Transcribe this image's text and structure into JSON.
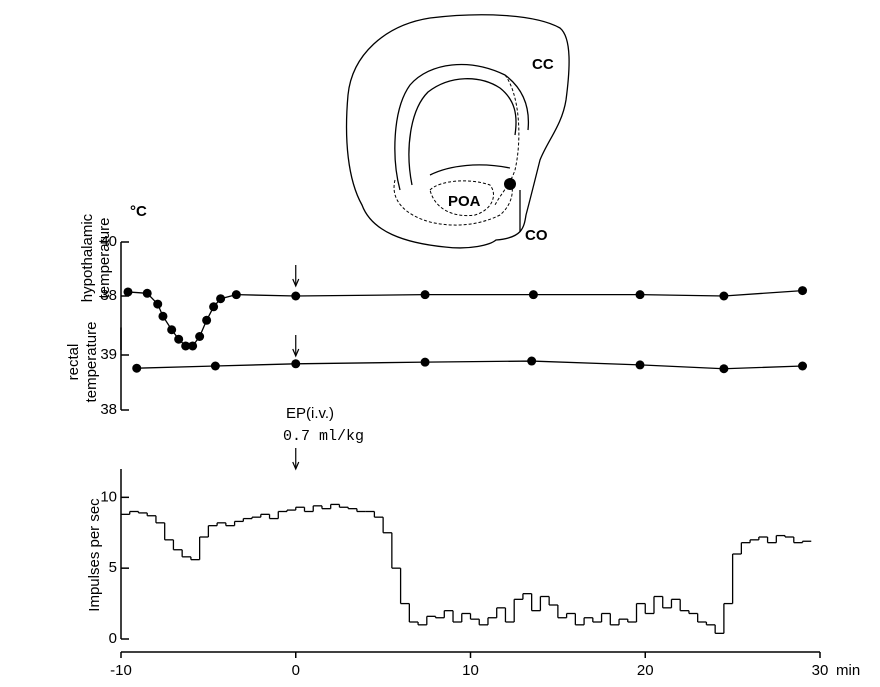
{
  "diagram": {
    "labels": [
      "CC",
      "POA",
      "CO"
    ]
  },
  "chart_data": [
    {
      "type": "line",
      "y_label_lines": [
        "hypothalamic",
        "temperature"
      ],
      "y_unit": "°C",
      "xlim": [
        -10,
        30
      ],
      "ylim": [
        36,
        40
      ],
      "yticks": [
        38,
        40
      ],
      "color": "#000000",
      "marker": "circle",
      "arrow_at": 0,
      "x": [
        -9.6,
        -8.5,
        -7.9,
        -7.6,
        -7.1,
        -6.7,
        -6.3,
        -5.9,
        -5.5,
        -5.1,
        -4.7,
        -4.3,
        -3.4,
        0,
        7.4,
        13.6,
        19.7,
        24.5,
        29
      ],
      "values": [
        38.15,
        38.1,
        37.7,
        37.25,
        36.75,
        36.4,
        36.15,
        36.15,
        36.5,
        37.1,
        37.6,
        37.9,
        38.05,
        38.0,
        38.05,
        38.05,
        38.05,
        38.0,
        38.2
      ]
    },
    {
      "type": "line",
      "y_label_lines": [
        "rectal",
        "temperature"
      ],
      "xlim": [
        -10,
        30
      ],
      "ylim": [
        38,
        39.5
      ],
      "yticks": [
        38,
        39
      ],
      "color": "#000000",
      "marker": "circle",
      "arrow_at": 0,
      "x": [
        -9.1,
        -4.6,
        0,
        7.4,
        13.5,
        19.7,
        24.5,
        29
      ],
      "values": [
        38.76,
        38.8,
        38.84,
        38.87,
        38.89,
        38.82,
        38.75,
        38.8
      ]
    },
    {
      "type": "step",
      "y_label": "Impulses per sec",
      "x_unit": "min",
      "annotation": [
        "EP(i.v.)",
        "0.7 ml/kg"
      ],
      "arrow_at": 0,
      "xlim": [
        -10,
        30
      ],
      "xticks": [
        -10,
        0,
        10,
        20,
        30
      ],
      "ylim": [
        0,
        12
      ],
      "yticks": [
        0,
        5,
        10
      ],
      "color": "#000000",
      "x": [
        -10,
        -9.5,
        -9,
        -8.5,
        -8,
        -7.5,
        -7,
        -6.5,
        -6,
        -5.5,
        -5,
        -4.5,
        -4,
        -3.5,
        -3,
        -2.5,
        -2,
        -1.5,
        -1,
        -0.5,
        0,
        0.5,
        1,
        1.5,
        2,
        2.5,
        3,
        3.5,
        4,
        4.5,
        5,
        5.5,
        6,
        6.5,
        7,
        7.5,
        8,
        8.5,
        9,
        9.5,
        10,
        10.5,
        11,
        11.5,
        12,
        12.5,
        13,
        13.5,
        14,
        14.5,
        15,
        15.5,
        16,
        16.5,
        17,
        17.5,
        18,
        18.5,
        19,
        19.5,
        20,
        20.5,
        21,
        21.5,
        22,
        22.5,
        23,
        23.5,
        24,
        24.5,
        25,
        25.5,
        26,
        26.5,
        27,
        27.5,
        28,
        28.5,
        29
      ],
      "values": [
        8.8,
        9.0,
        8.9,
        8.7,
        8.2,
        7.0,
        6.3,
        5.8,
        5.6,
        7.2,
        8.0,
        8.2,
        8.0,
        8.3,
        8.5,
        8.6,
        8.8,
        8.5,
        9.0,
        9.1,
        9.3,
        9.0,
        9.4,
        9.2,
        9.5,
        9.3,
        9.2,
        9.0,
        9.0,
        8.6,
        7.5,
        5.0,
        2.5,
        1.2,
        1.0,
        1.6,
        1.5,
        2.0,
        1.2,
        1.8,
        1.4,
        1.0,
        1.5,
        2.2,
        1.2,
        2.8,
        3.2,
        2.0,
        3.0,
        2.4,
        1.5,
        1.8,
        1.0,
        1.5,
        1.2,
        1.8,
        1.0,
        1.4,
        1.2,
        2.5,
        1.8,
        3.0,
        2.2,
        2.8,
        2.0,
        1.8,
        1.2,
        1.0,
        0.4,
        2.5,
        6.0,
        6.8,
        7.0,
        7.2,
        6.8,
        7.3,
        7.2,
        6.8,
        6.9
      ]
    }
  ]
}
